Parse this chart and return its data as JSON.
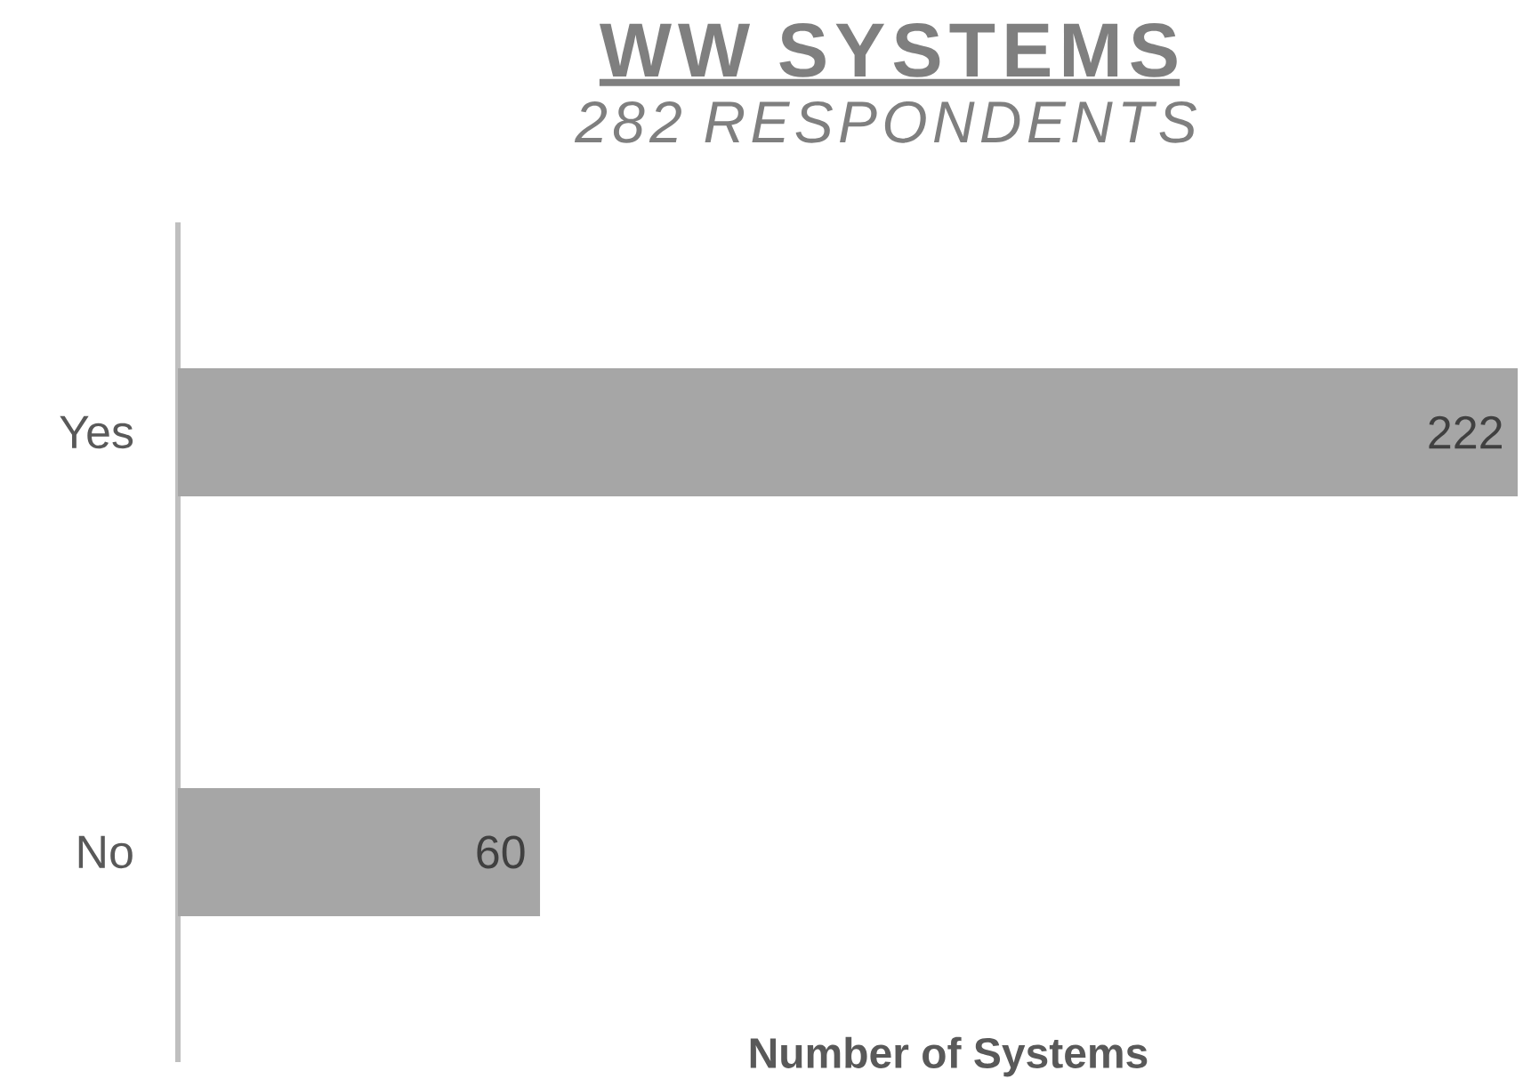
{
  "chart_data": {
    "type": "bar",
    "title": "WW SYSTEMS",
    "subtitle": "282 RESPONDENTS",
    "xlabel": "Number of Systems",
    "categories": [
      "Yes",
      "No"
    ],
    "values": [
      222,
      60
    ],
    "color": "#a6a6a6",
    "orientation": "horizontal",
    "data_labels": true,
    "tick_labels": "y"
  }
}
